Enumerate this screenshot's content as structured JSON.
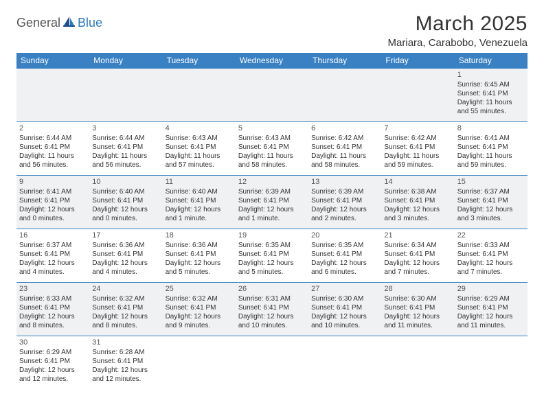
{
  "logo": {
    "part1": "General",
    "part2": "Blue"
  },
  "title": "March 2025",
  "location": "Mariara, Carabobo, Venezuela",
  "colors": {
    "header_bg": "#3a81c4",
    "header_text": "#ffffff",
    "row_border": "#3a81c4",
    "row_alt_bg": "#f3f4f5",
    "logo_blue": "#2b7bbf",
    "text": "#333333"
  },
  "dayHeaders": [
    "Sunday",
    "Monday",
    "Tuesday",
    "Wednesday",
    "Thursday",
    "Friday",
    "Saturday"
  ],
  "weeks": [
    [
      null,
      null,
      null,
      null,
      null,
      null,
      {
        "n": "1",
        "sr": "Sunrise: 6:45 AM",
        "ss": "Sunset: 6:41 PM",
        "dl": "Daylight: 11 hours and 55 minutes."
      }
    ],
    [
      {
        "n": "2",
        "sr": "Sunrise: 6:44 AM",
        "ss": "Sunset: 6:41 PM",
        "dl": "Daylight: 11 hours and 56 minutes."
      },
      {
        "n": "3",
        "sr": "Sunrise: 6:44 AM",
        "ss": "Sunset: 6:41 PM",
        "dl": "Daylight: 11 hours and 56 minutes."
      },
      {
        "n": "4",
        "sr": "Sunrise: 6:43 AM",
        "ss": "Sunset: 6:41 PM",
        "dl": "Daylight: 11 hours and 57 minutes."
      },
      {
        "n": "5",
        "sr": "Sunrise: 6:43 AM",
        "ss": "Sunset: 6:41 PM",
        "dl": "Daylight: 11 hours and 58 minutes."
      },
      {
        "n": "6",
        "sr": "Sunrise: 6:42 AM",
        "ss": "Sunset: 6:41 PM",
        "dl": "Daylight: 11 hours and 58 minutes."
      },
      {
        "n": "7",
        "sr": "Sunrise: 6:42 AM",
        "ss": "Sunset: 6:41 PM",
        "dl": "Daylight: 11 hours and 59 minutes."
      },
      {
        "n": "8",
        "sr": "Sunrise: 6:41 AM",
        "ss": "Sunset: 6:41 PM",
        "dl": "Daylight: 11 hours and 59 minutes."
      }
    ],
    [
      {
        "n": "9",
        "sr": "Sunrise: 6:41 AM",
        "ss": "Sunset: 6:41 PM",
        "dl": "Daylight: 12 hours and 0 minutes."
      },
      {
        "n": "10",
        "sr": "Sunrise: 6:40 AM",
        "ss": "Sunset: 6:41 PM",
        "dl": "Daylight: 12 hours and 0 minutes."
      },
      {
        "n": "11",
        "sr": "Sunrise: 6:40 AM",
        "ss": "Sunset: 6:41 PM",
        "dl": "Daylight: 12 hours and 1 minute."
      },
      {
        "n": "12",
        "sr": "Sunrise: 6:39 AM",
        "ss": "Sunset: 6:41 PM",
        "dl": "Daylight: 12 hours and 1 minute."
      },
      {
        "n": "13",
        "sr": "Sunrise: 6:39 AM",
        "ss": "Sunset: 6:41 PM",
        "dl": "Daylight: 12 hours and 2 minutes."
      },
      {
        "n": "14",
        "sr": "Sunrise: 6:38 AM",
        "ss": "Sunset: 6:41 PM",
        "dl": "Daylight: 12 hours and 3 minutes."
      },
      {
        "n": "15",
        "sr": "Sunrise: 6:37 AM",
        "ss": "Sunset: 6:41 PM",
        "dl": "Daylight: 12 hours and 3 minutes."
      }
    ],
    [
      {
        "n": "16",
        "sr": "Sunrise: 6:37 AM",
        "ss": "Sunset: 6:41 PM",
        "dl": "Daylight: 12 hours and 4 minutes."
      },
      {
        "n": "17",
        "sr": "Sunrise: 6:36 AM",
        "ss": "Sunset: 6:41 PM",
        "dl": "Daylight: 12 hours and 4 minutes."
      },
      {
        "n": "18",
        "sr": "Sunrise: 6:36 AM",
        "ss": "Sunset: 6:41 PM",
        "dl": "Daylight: 12 hours and 5 minutes."
      },
      {
        "n": "19",
        "sr": "Sunrise: 6:35 AM",
        "ss": "Sunset: 6:41 PM",
        "dl": "Daylight: 12 hours and 5 minutes."
      },
      {
        "n": "20",
        "sr": "Sunrise: 6:35 AM",
        "ss": "Sunset: 6:41 PM",
        "dl": "Daylight: 12 hours and 6 minutes."
      },
      {
        "n": "21",
        "sr": "Sunrise: 6:34 AM",
        "ss": "Sunset: 6:41 PM",
        "dl": "Daylight: 12 hours and 7 minutes."
      },
      {
        "n": "22",
        "sr": "Sunrise: 6:33 AM",
        "ss": "Sunset: 6:41 PM",
        "dl": "Daylight: 12 hours and 7 minutes."
      }
    ],
    [
      {
        "n": "23",
        "sr": "Sunrise: 6:33 AM",
        "ss": "Sunset: 6:41 PM",
        "dl": "Daylight: 12 hours and 8 minutes."
      },
      {
        "n": "24",
        "sr": "Sunrise: 6:32 AM",
        "ss": "Sunset: 6:41 PM",
        "dl": "Daylight: 12 hours and 8 minutes."
      },
      {
        "n": "25",
        "sr": "Sunrise: 6:32 AM",
        "ss": "Sunset: 6:41 PM",
        "dl": "Daylight: 12 hours and 9 minutes."
      },
      {
        "n": "26",
        "sr": "Sunrise: 6:31 AM",
        "ss": "Sunset: 6:41 PM",
        "dl": "Daylight: 12 hours and 10 minutes."
      },
      {
        "n": "27",
        "sr": "Sunrise: 6:30 AM",
        "ss": "Sunset: 6:41 PM",
        "dl": "Daylight: 12 hours and 10 minutes."
      },
      {
        "n": "28",
        "sr": "Sunrise: 6:30 AM",
        "ss": "Sunset: 6:41 PM",
        "dl": "Daylight: 12 hours and 11 minutes."
      },
      {
        "n": "29",
        "sr": "Sunrise: 6:29 AM",
        "ss": "Sunset: 6:41 PM",
        "dl": "Daylight: 12 hours and 11 minutes."
      }
    ],
    [
      {
        "n": "30",
        "sr": "Sunrise: 6:29 AM",
        "ss": "Sunset: 6:41 PM",
        "dl": "Daylight: 12 hours and 12 minutes."
      },
      {
        "n": "31",
        "sr": "Sunrise: 6:28 AM",
        "ss": "Sunset: 6:41 PM",
        "dl": "Daylight: 12 hours and 12 minutes."
      },
      null,
      null,
      null,
      null,
      null
    ]
  ]
}
